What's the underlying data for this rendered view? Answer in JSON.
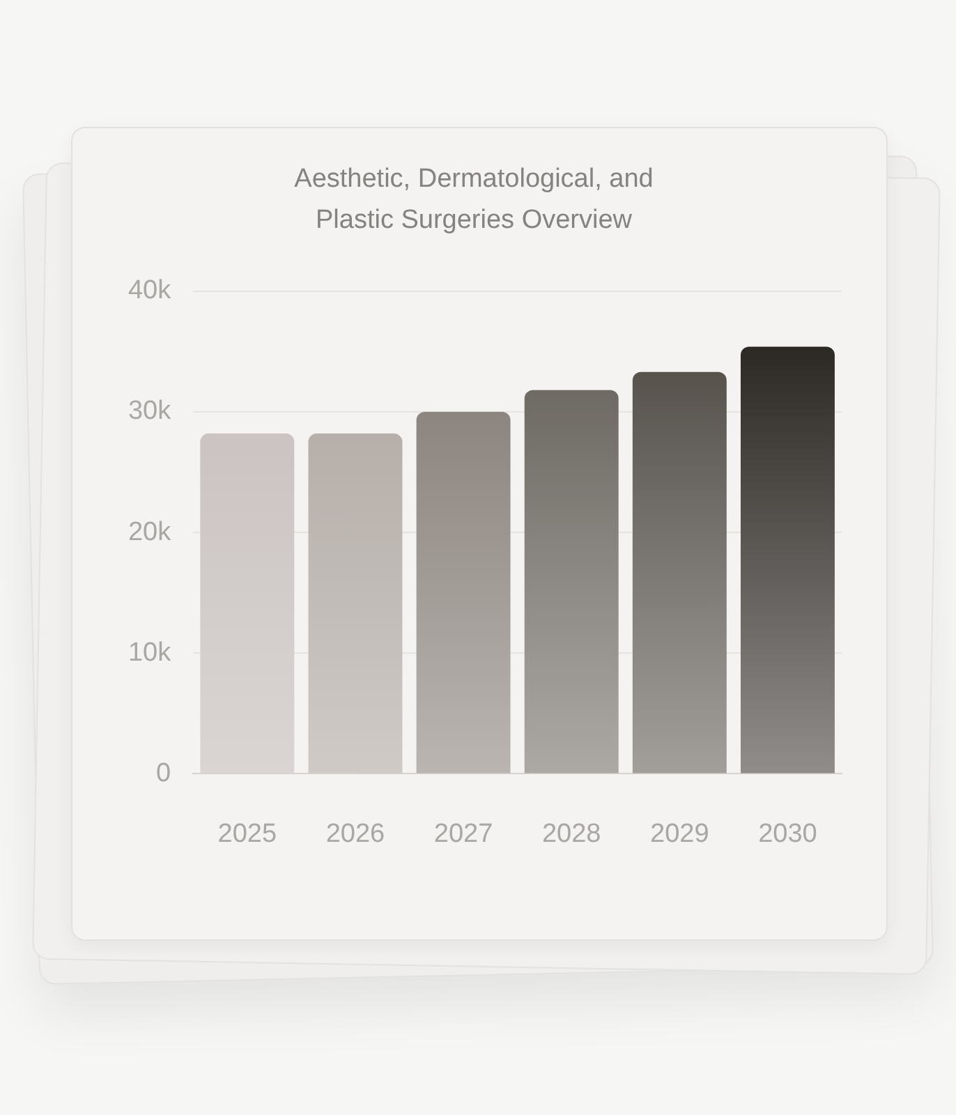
{
  "chart_data": {
    "type": "bar",
    "title": [
      "Aesthetic, Dermatological, and",
      "Plastic Surgeries Overview"
    ],
    "categories": [
      "2025",
      "2026",
      "2027",
      "2028",
      "2029",
      "2030"
    ],
    "values": [
      28200,
      28200,
      30000,
      31800,
      33300,
      35400
    ],
    "colors": [
      "#c4bcba",
      "#aba39e",
      "#7d756f",
      "#5e5953",
      "#48433d",
      "#1f1c18"
    ],
    "ylim": [
      0,
      40000
    ],
    "yticks": [
      {
        "value": 0,
        "label": "0"
      },
      {
        "value": 10000,
        "label": "10k"
      },
      {
        "value": 20000,
        "label": "20k"
      },
      {
        "value": 30000,
        "label": "30k"
      },
      {
        "value": 40000,
        "label": "40k"
      }
    ],
    "grid": "y",
    "legend": false
  }
}
